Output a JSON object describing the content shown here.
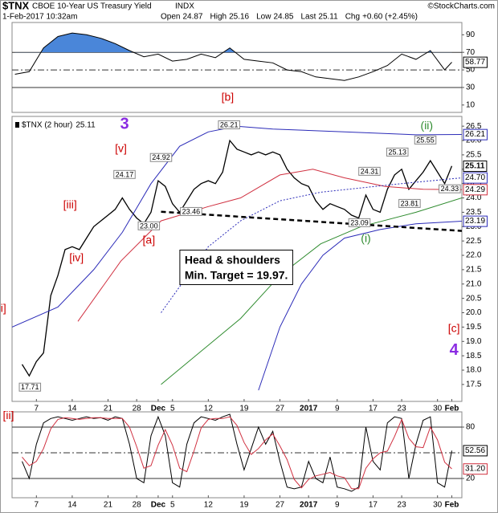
{
  "header": {
    "symbol": "$TNX",
    "name": "CBOE 10-Year US Treasury Yield",
    "exchange": "INDX",
    "source": "©StockCharts.com",
    "timestamp": "1-Feb-2017 10:32am",
    "quote": [
      {
        "label": "Open",
        "value": "24.87"
      },
      {
        "label": "High",
        "value": "25.16"
      },
      {
        "label": "Low",
        "value": "24.85"
      },
      {
        "label": "Last",
        "value": "25.11"
      },
      {
        "label": "Chg",
        "value": "+0.60 (+2.45%)"
      }
    ]
  },
  "chart_data": [
    {
      "type": "line",
      "xlim": [
        -1.4,
        61.4
      ],
      "ylim": [
        1.6,
        104
      ],
      "yticks": [
        10,
        30,
        50,
        70,
        90
      ],
      "ref_lines": [
        {
          "value": 70,
          "style": "solid"
        },
        {
          "value": 50,
          "style": "dashdot"
        },
        {
          "value": 30,
          "style": "solid"
        }
      ],
      "series": [
        {
          "color": "#000000",
          "fill_above": 70,
          "fill_color": "#4a86d9",
          "x": [
            -1,
            1,
            3,
            5,
            7,
            9,
            11,
            13,
            15,
            17,
            19,
            21,
            23,
            25,
            27,
            29,
            31,
            33,
            35,
            37,
            39,
            41,
            43,
            45,
            47,
            49,
            51,
            53,
            55,
            57,
            59,
            60
          ],
          "values": [
            45,
            48,
            75,
            88,
            92,
            90,
            86,
            80,
            72,
            65,
            68,
            60,
            62,
            68,
            64,
            75,
            62,
            60,
            58,
            50,
            48,
            42,
            40,
            38,
            42,
            48,
            55,
            68,
            62,
            72,
            50,
            58.77
          ],
          "end_box": true
        }
      ],
      "annotations": [
        {
          "text": "[b]",
          "x": 28.7,
          "y": 18.4,
          "kind": "wave",
          "color": "#cc0000"
        }
      ]
    },
    {
      "type": "line",
      "xlim": [
        -1.4,
        61.4
      ],
      "ylim": [
        16.91,
        26.84
      ],
      "yticks": [
        17.5,
        {
          "value": 18,
          "label": "18.0"
        },
        18.5,
        {
          "value": 19,
          "label": "19.0"
        },
        19.5,
        {
          "value": 20,
          "label": "20.0"
        },
        20.5,
        {
          "value": 21,
          "label": "21.0"
        },
        21.5,
        {
          "value": 22,
          "label": "22.0"
        },
        22.5,
        {
          "value": 23,
          "label": "23.0"
        },
        23.5,
        {
          "value": 24,
          "label": "24.0"
        },
        24.5,
        {
          "value": 25,
          "label": "25.0"
        },
        25.5,
        {
          "value": 26,
          "label": "26.0"
        },
        26.5
      ],
      "xticks": [
        {
          "value": 2,
          "label": "7"
        },
        {
          "value": 7,
          "label": "14"
        },
        {
          "value": 12,
          "label": "21"
        },
        {
          "value": 16,
          "label": "28"
        },
        {
          "value": 19,
          "label": "Dec",
          "bold": true
        },
        {
          "value": 21,
          "label": "5"
        },
        {
          "value": 26,
          "label": "12"
        },
        {
          "value": 31,
          "label": "19"
        },
        {
          "value": 36,
          "label": "27"
        },
        {
          "value": 40,
          "label": "2017",
          "bold": true
        },
        {
          "value": 44,
          "label": "9"
        },
        {
          "value": 49,
          "label": "17"
        },
        {
          "value": 53,
          "label": "23"
        },
        {
          "value": 58,
          "label": "30"
        },
        {
          "value": 60,
          "label": "Feb",
          "bold": true
        }
      ],
      "x": [
        0,
        1,
        2,
        3,
        4,
        5,
        6,
        7,
        8,
        9,
        10,
        11,
        12,
        13,
        14,
        15,
        16,
        17,
        18,
        19,
        20,
        21,
        22,
        23,
        24,
        25,
        26,
        27,
        28,
        29,
        30,
        31,
        32,
        33,
        34,
        35,
        36,
        37,
        38,
        39,
        40,
        41,
        42,
        43,
        44,
        45,
        46,
        47,
        48,
        49,
        50,
        51,
        52,
        53,
        54,
        55,
        56,
        57,
        58,
        59,
        60
      ],
      "series": [
        {
          "name": "$TNX (2 hour)",
          "color": "#000000",
          "width": 1.3,
          "end_box": true,
          "end_bold": true,
          "values": [
            18.2,
            17.8,
            18.3,
            18.6,
            20.6,
            21.3,
            22.2,
            22.3,
            22.2,
            22.6,
            23.0,
            23.2,
            23.4,
            23.6,
            24.0,
            23.6,
            23.3,
            23.1,
            23.5,
            24.6,
            24.4,
            23.8,
            23.5,
            23.9,
            24.3,
            24.5,
            24.6,
            24.5,
            24.9,
            26.0,
            25.7,
            25.6,
            25.5,
            25.6,
            25.5,
            25.6,
            25.5,
            25.0,
            24.7,
            24.5,
            24.4,
            23.9,
            23.6,
            23.8,
            23.7,
            23.6,
            23.4,
            23.3,
            24.1,
            23.6,
            23.5,
            24.3,
            24.8,
            25.0,
            24.3,
            24.6,
            24.9,
            25.3,
            24.9,
            24.5,
            25.11
          ]
        },
        {
          "color": "#2b2bb8",
          "x": [
            -1.4,
            5,
            10,
            14,
            18,
            22,
            26,
            30,
            35,
            45,
            55,
            61.4
          ],
          "values": [
            19.5,
            20.2,
            21.5,
            22.8,
            24.5,
            25.8,
            26.3,
            26.5,
            26.4,
            26.3,
            26.2,
            26.21
          ],
          "end_box": true
        },
        {
          "color": "#2b2bb8",
          "x": [
            33,
            36,
            39,
            42,
            45,
            50,
            55,
            61.4
          ],
          "values": [
            17.3,
            19.5,
            21.0,
            22.0,
            22.6,
            22.9,
            23.1,
            23.19
          ],
          "end_box": true
        },
        {
          "color": "#d03040",
          "x": [
            7.8,
            13.8,
            19.4,
            26,
            30.5,
            36,
            40.6,
            45,
            50.7,
            56,
            61.4
          ],
          "values": [
            19.7,
            21.8,
            23.2,
            23.7,
            24.0,
            24.8,
            25.0,
            24.7,
            24.4,
            24.3,
            24.29
          ],
          "end_box": true
        },
        {
          "color": "#2b2bb8",
          "dash": "2,2",
          "x": [
            19.4,
            26,
            30.5,
            36,
            41.7,
            53,
            61.4
          ],
          "values": [
            20.0,
            22.3,
            23.2,
            23.9,
            24.2,
            24.5,
            24.7
          ],
          "end_label": "24.70"
        },
        {
          "color": "#2e8b2e",
          "x": [
            19.4,
            30.5,
            36,
            41.7,
            47.3,
            55,
            61.4
          ],
          "values": [
            17.5,
            19.8,
            21.3,
            22.4,
            23.0,
            23.5,
            24.0
          ]
        },
        {
          "color": "#000000",
          "dash": "6,4",
          "width": 2.5,
          "x": [
            19.4,
            61.4
          ],
          "values": [
            23.52,
            22.85
          ]
        }
      ],
      "annotations": [
        {
          "text": "17.71",
          "x": 1.1,
          "y": 17.39,
          "kind": "price"
        },
        {
          "text": "24.17",
          "x": 14.3,
          "y": 24.8,
          "kind": "price"
        },
        {
          "text": "23.00",
          "x": 17.7,
          "y": 23.01,
          "kind": "price"
        },
        {
          "text": "24.92",
          "x": 19.4,
          "y": 25.39,
          "kind": "price"
        },
        {
          "text": "23.46",
          "x": 23.6,
          "y": 23.51,
          "kind": "price"
        },
        {
          "text": "26.21",
          "x": 28.9,
          "y": 26.53,
          "kind": "price"
        },
        {
          "text": "25.13",
          "x": 52.4,
          "y": 25.58,
          "kind": "price"
        },
        {
          "text": "25.55",
          "x": 56.3,
          "y": 26.0,
          "kind": "price"
        },
        {
          "text": "24.31",
          "x": 48.5,
          "y": 24.91,
          "kind": "price"
        },
        {
          "text": "23.81",
          "x": 54.1,
          "y": 23.79,
          "kind": "price"
        },
        {
          "text": "23.09",
          "x": 47.1,
          "y": 23.12,
          "kind": "price"
        },
        {
          "text": "24.33",
          "x": 59.7,
          "y": 24.3,
          "kind": "price"
        },
        {
          "text": "[v]",
          "x": 13.8,
          "y": 25.7,
          "kind": "wave",
          "color": "#cc0000"
        },
        {
          "text": "[iii]",
          "x": 6.7,
          "y": 23.74,
          "kind": "wave",
          "color": "#cc0000"
        },
        {
          "text": "[iv]",
          "x": 7.6,
          "y": 21.9,
          "kind": "wave",
          "color": "#cc0000"
        },
        {
          "text": "[a]",
          "x": 17.7,
          "y": 22.51,
          "kind": "wave",
          "color": "#cc0000"
        },
        {
          "text": "3",
          "x": 14.3,
          "y": 26.56,
          "kind": "degree",
          "color": "#8a2be2"
        },
        {
          "text": "(ii)",
          "x": 56.5,
          "y": 26.5,
          "kind": "wave",
          "color": "#2e8b2e"
        },
        {
          "text": "(i)",
          "x": 48.0,
          "y": 22.56,
          "kind": "wave",
          "color": "#2e8b2e"
        },
        {
          "text": "[c]",
          "x": 60.3,
          "y": 19.43,
          "kind": "wave",
          "color": "#cc0000"
        },
        {
          "text": "4",
          "x": 60.3,
          "y": 18.68,
          "kind": "degree",
          "color": "#8a2be2"
        },
        {
          "text": "i]",
          "x": -2.6,
          "y": 20.13,
          "kind": "wave",
          "color": "#cc0000"
        }
      ],
      "note": {
        "lines": [
          "Head & shoulders",
          "Min. Target = 19.97."
        ],
        "x": 22.7,
        "y": 21.81
      }
    },
    {
      "type": "line",
      "xlim": [
        -1.4,
        61.4
      ],
      "ylim": [
        -2.5,
        97.8
      ],
      "yticks": [
        20,
        80
      ],
      "ref_lines": [
        {
          "value": 80,
          "style": "solid"
        },
        {
          "value": 50,
          "style": "dashdot"
        },
        {
          "value": 20,
          "style": "solid"
        }
      ],
      "xticks": [
        {
          "value": 2,
          "label": "7"
        },
        {
          "value": 7,
          "label": "14"
        },
        {
          "value": 12,
          "label": "21"
        },
        {
          "value": 16,
          "label": "28"
        },
        {
          "value": 19,
          "label": "Dec",
          "bold": true
        },
        {
          "value": 21,
          "label": "5"
        },
        {
          "value": 26,
          "label": "12"
        },
        {
          "value": 31,
          "label": "19"
        },
        {
          "value": 36,
          "label": "27"
        },
        {
          "value": 40,
          "label": "2017",
          "bold": true
        },
        {
          "value": 44,
          "label": "9"
        },
        {
          "value": 49,
          "label": "17"
        },
        {
          "value": 53,
          "label": "23"
        },
        {
          "value": 58,
          "label": "30"
        },
        {
          "value": 60,
          "label": "Feb",
          "bold": true
        }
      ],
      "x": [
        0,
        1,
        2,
        3,
        4,
        5,
        6,
        7,
        8,
        9,
        10,
        11,
        12,
        13,
        14,
        15,
        16,
        17,
        18,
        19,
        20,
        21,
        22,
        23,
        24,
        25,
        26,
        27,
        28,
        29,
        30,
        31,
        32,
        33,
        34,
        35,
        36,
        37,
        38,
        39,
        40,
        41,
        42,
        43,
        44,
        45,
        46,
        47,
        48,
        49,
        50,
        51,
        52,
        53,
        54,
        55,
        56,
        57,
        58,
        59,
        60
      ],
      "series": [
        {
          "color": "#000000",
          "end_box": true,
          "values": [
            40,
            20,
            60,
            85,
            90,
            92,
            90,
            88,
            90,
            92,
            90,
            91,
            88,
            92,
            90,
            60,
            20,
            15,
            70,
            92,
            70,
            15,
            10,
            60,
            85,
            92,
            90,
            88,
            92,
            95,
            60,
            30,
            55,
            80,
            60,
            75,
            40,
            10,
            8,
            10,
            40,
            20,
            15,
            45,
            10,
            8,
            5,
            10,
            80,
            40,
            30,
            85,
            92,
            90,
            20,
            60,
            88,
            92,
            15,
            10,
            52.56
          ]
        },
        {
          "color": "#d03040",
          "end_label": "31.20",
          "values": [
            45,
            35,
            40,
            55,
            78,
            89,
            91,
            90,
            89,
            90,
            91,
            91,
            90,
            90,
            90,
            80,
            57,
            32,
            35,
            59,
            77,
            59,
            32,
            28,
            52,
            79,
            89,
            90,
            90,
            92,
            82,
            62,
            48,
            55,
            65,
            72,
            58,
            42,
            19,
            9,
            19,
            23,
            25,
            27,
            23,
            21,
            8,
            8,
            32,
            43,
            50,
            52,
            69,
            89,
            67,
            57,
            56,
            80,
            65,
            39,
            31.2
          ]
        }
      ],
      "annotations": [
        {
          "text": "[ii]",
          "x": -1.9,
          "y": 93,
          "kind": "wave",
          "color": "#cc0000"
        }
      ]
    }
  ]
}
